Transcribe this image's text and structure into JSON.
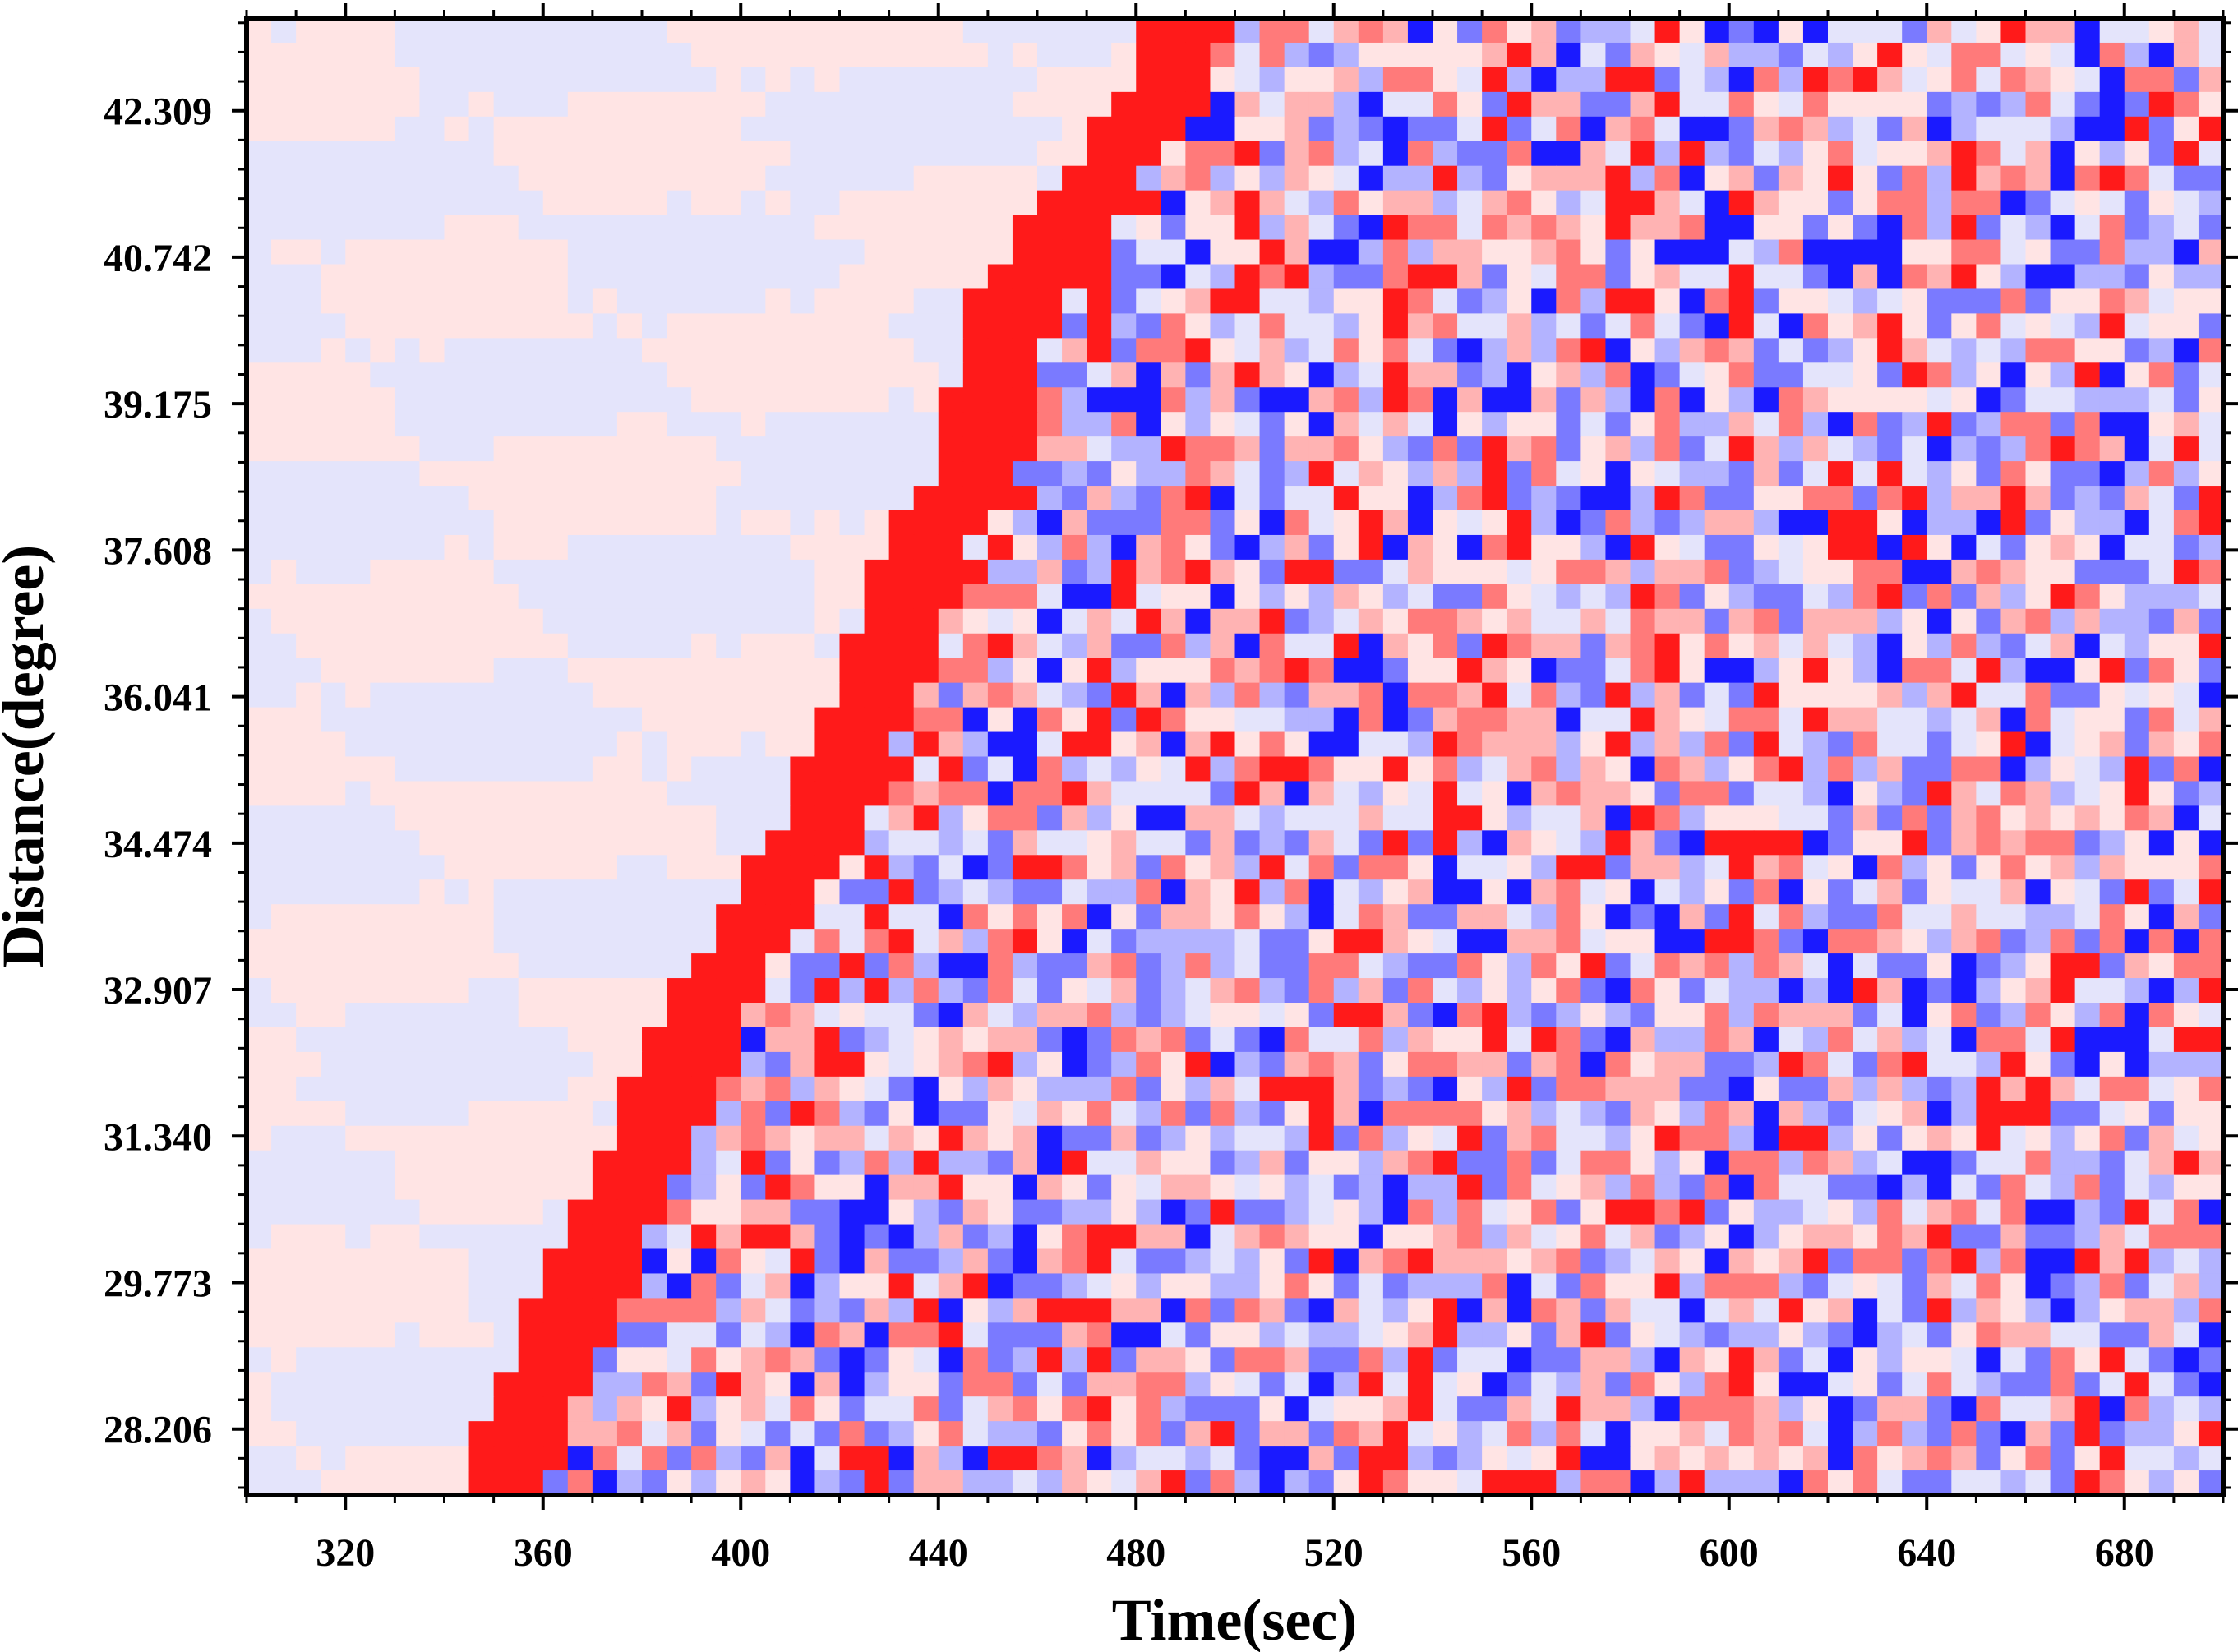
{
  "chart_data": {
    "type": "heatmap",
    "title": "",
    "xlabel": "Time(sec)",
    "ylabel": "Distance(degree)",
    "xlim": [
      300,
      700
    ],
    "ylim": [
      27.5,
      43.3
    ],
    "x_ticks": [
      320,
      360,
      400,
      440,
      480,
      520,
      560,
      600,
      640,
      680
    ],
    "x_tick_labels": [
      "320",
      "360",
      "400",
      "440",
      "480",
      "520",
      "560",
      "600",
      "640",
      "680"
    ],
    "y_ticks": [
      28.206,
      29.773,
      31.34,
      32.907,
      34.474,
      36.041,
      37.608,
      39.175,
      40.742,
      42.309
    ],
    "y_tick_labels": [
      "28.206",
      "29.773",
      "31.340",
      "32.907",
      "34.474",
      "36.041",
      "37.608",
      "39.175",
      "40.742",
      "42.309"
    ],
    "colormap": {
      "negative_color": "#1a1aff",
      "neutral_color": "#ffffff",
      "positive_color": "#ff1a1a"
    },
    "grid": false,
    "legend": "none",
    "description_of_pattern": {
      "first_arrival_onset_time_by_distance": [
        {
          "distance": 27.7,
          "time": 355
        },
        {
          "distance": 29.8,
          "time": 372
        },
        {
          "distance": 31.3,
          "time": 385
        },
        {
          "distance": 32.9,
          "time": 398
        },
        {
          "distance": 34.5,
          "time": 418
        },
        {
          "distance": 36.0,
          "time": 430
        },
        {
          "distance": 37.6,
          "time": 440
        },
        {
          "distance": 38.6,
          "time": 452
        },
        {
          "distance": 40.2,
          "time": 458
        },
        {
          "distance": 41.2,
          "time": 470
        },
        {
          "distance": 42.5,
          "time": 490
        },
        {
          "distance": 43.3,
          "time": 492
        }
      ]
    }
  }
}
